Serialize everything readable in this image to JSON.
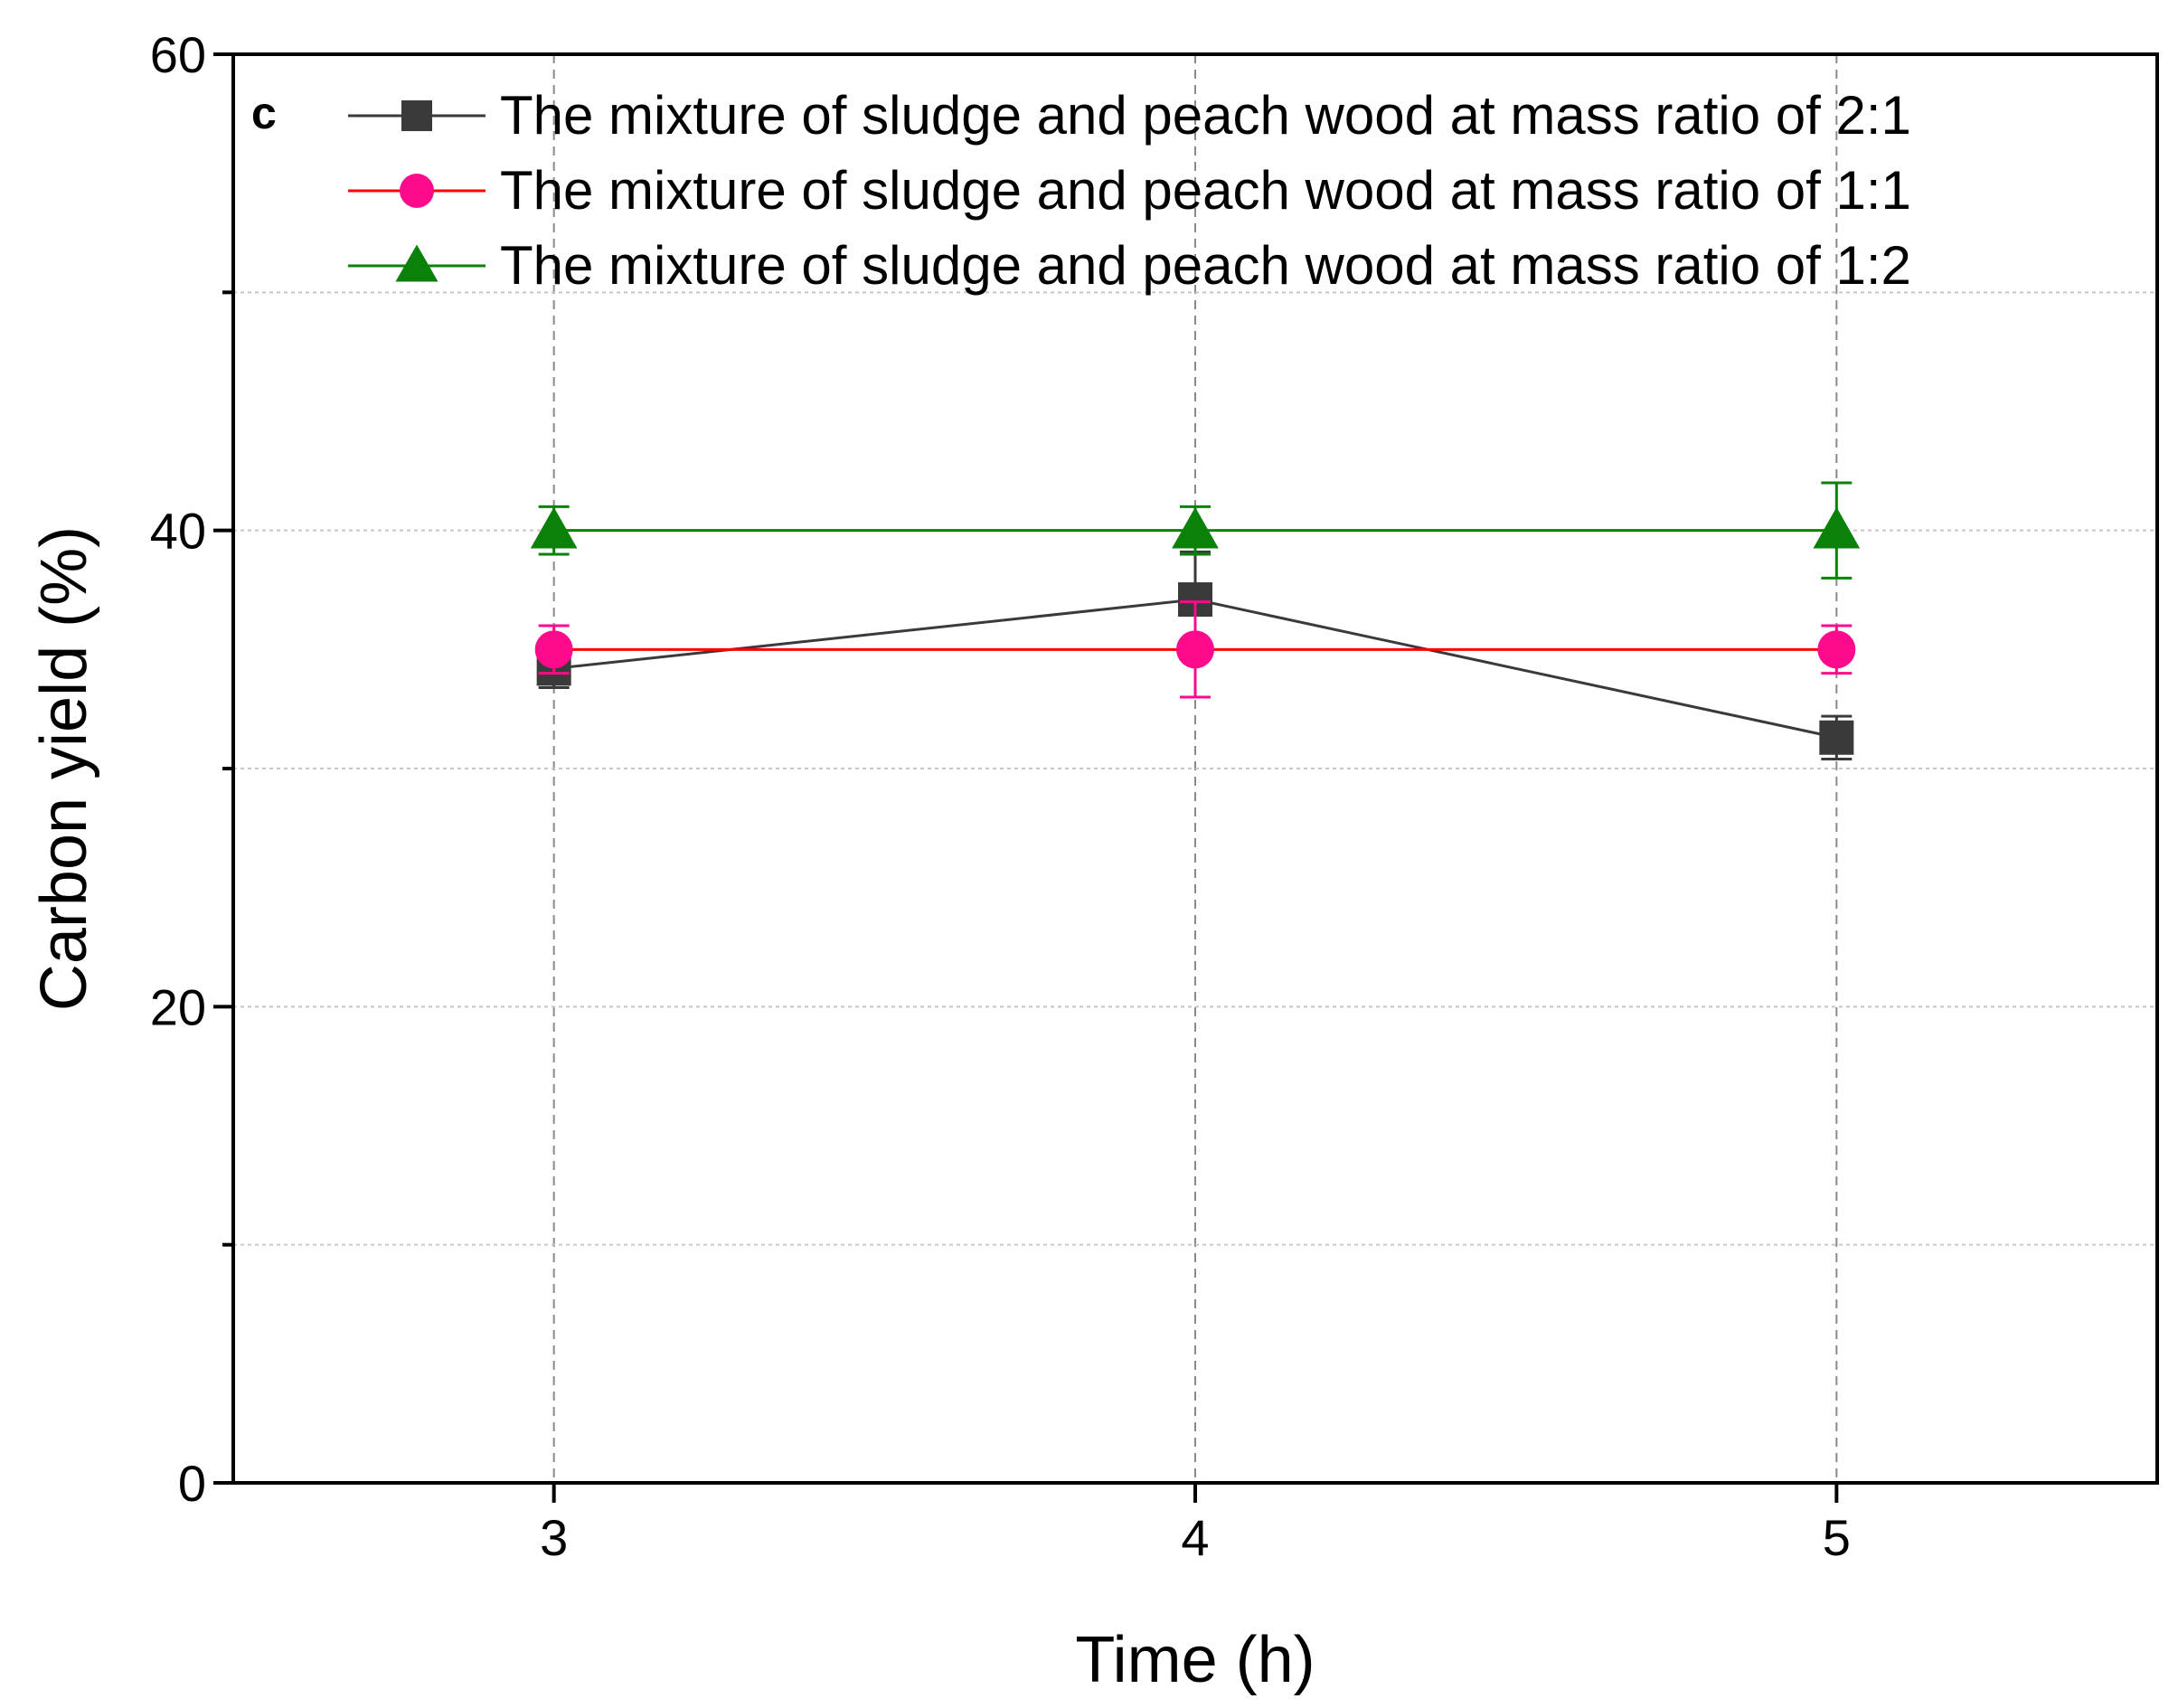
{
  "chart_data": {
    "type": "line",
    "panel_label": "c",
    "title": "",
    "xlabel": "Time (h)",
    "ylabel": "Carbon yield (%)",
    "x": [
      3,
      4,
      5
    ],
    "xlim": [
      2.5,
      5.5
    ],
    "ylim": [
      0,
      60
    ],
    "xticks": [
      3,
      4,
      5
    ],
    "yticks": [
      0,
      20,
      40,
      60
    ],
    "yminor": [
      10,
      30,
      50
    ],
    "grid": true,
    "legend_position": "top-left",
    "series": [
      {
        "name": "The mixture of sludge and peach wood at mass ratio of 2:1",
        "values": [
          34.2,
          37.1,
          31.3
        ],
        "errors": [
          0.8,
          2.0,
          0.9
        ],
        "color": "#3a3a3a",
        "marker": "square"
      },
      {
        "name": "The mixture of sludge and peach wood at mass ratio of 1:1",
        "values": [
          35.0,
          35.0,
          35.0
        ],
        "errors": [
          1.0,
          2.0,
          1.0
        ],
        "color": "#ff0a8c",
        "line_color": "#ff0000",
        "marker": "circle"
      },
      {
        "name": "The mixture of sludge and peach wood at mass ratio of 1:2",
        "values": [
          40.0,
          40.0,
          40.0
        ],
        "errors": [
          1.0,
          1.0,
          2.0
        ],
        "color": "#0a820a",
        "marker": "triangle"
      }
    ]
  }
}
